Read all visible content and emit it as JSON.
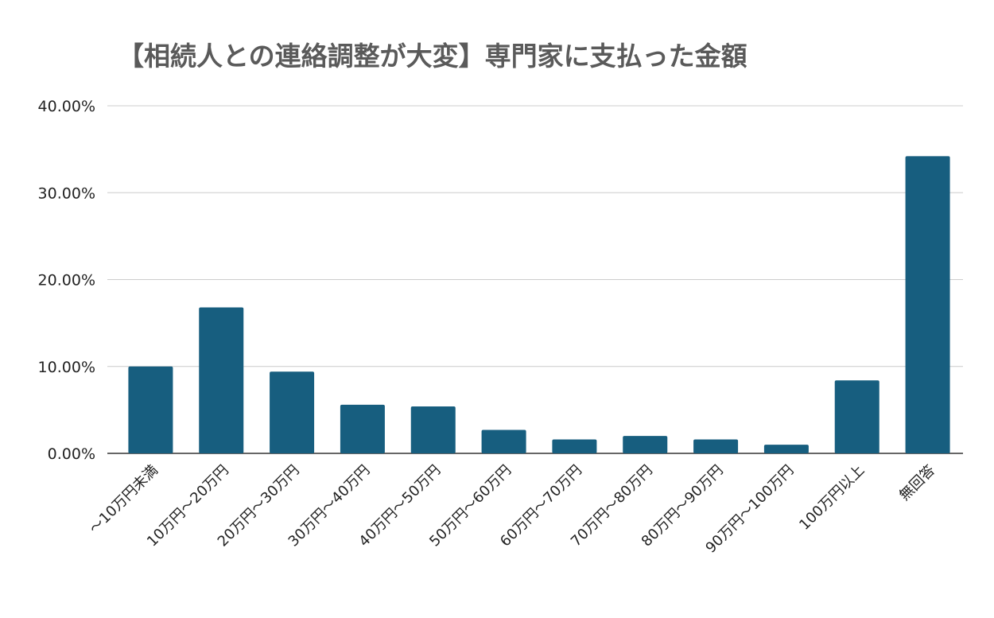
{
  "chart_data": {
    "type": "bar",
    "title": "【相続人との連絡調整が大変】専門家に支払った金額",
    "xlabel": "",
    "ylabel": "",
    "ylim": [
      0,
      40
    ],
    "yticks": [
      "0.00%",
      "10.00%",
      "20.00%",
      "30.00%",
      "40.00%"
    ],
    "grid": true,
    "categories": [
      "〜10万円未満",
      "10万円〜20万円",
      "20万円〜30万円",
      "30万円〜40万円",
      "40万円〜50万円",
      "50万円〜60万円",
      "60万円〜70万円",
      "70万円〜80万円",
      "80万円〜90万円",
      "90万円〜100万円",
      "100万円以上",
      "無回答"
    ],
    "values": [
      10.0,
      16.8,
      9.4,
      5.6,
      5.4,
      2.7,
      1.6,
      2.0,
      1.6,
      1.0,
      8.4,
      34.2
    ],
    "bar_color": "#175e7f"
  }
}
